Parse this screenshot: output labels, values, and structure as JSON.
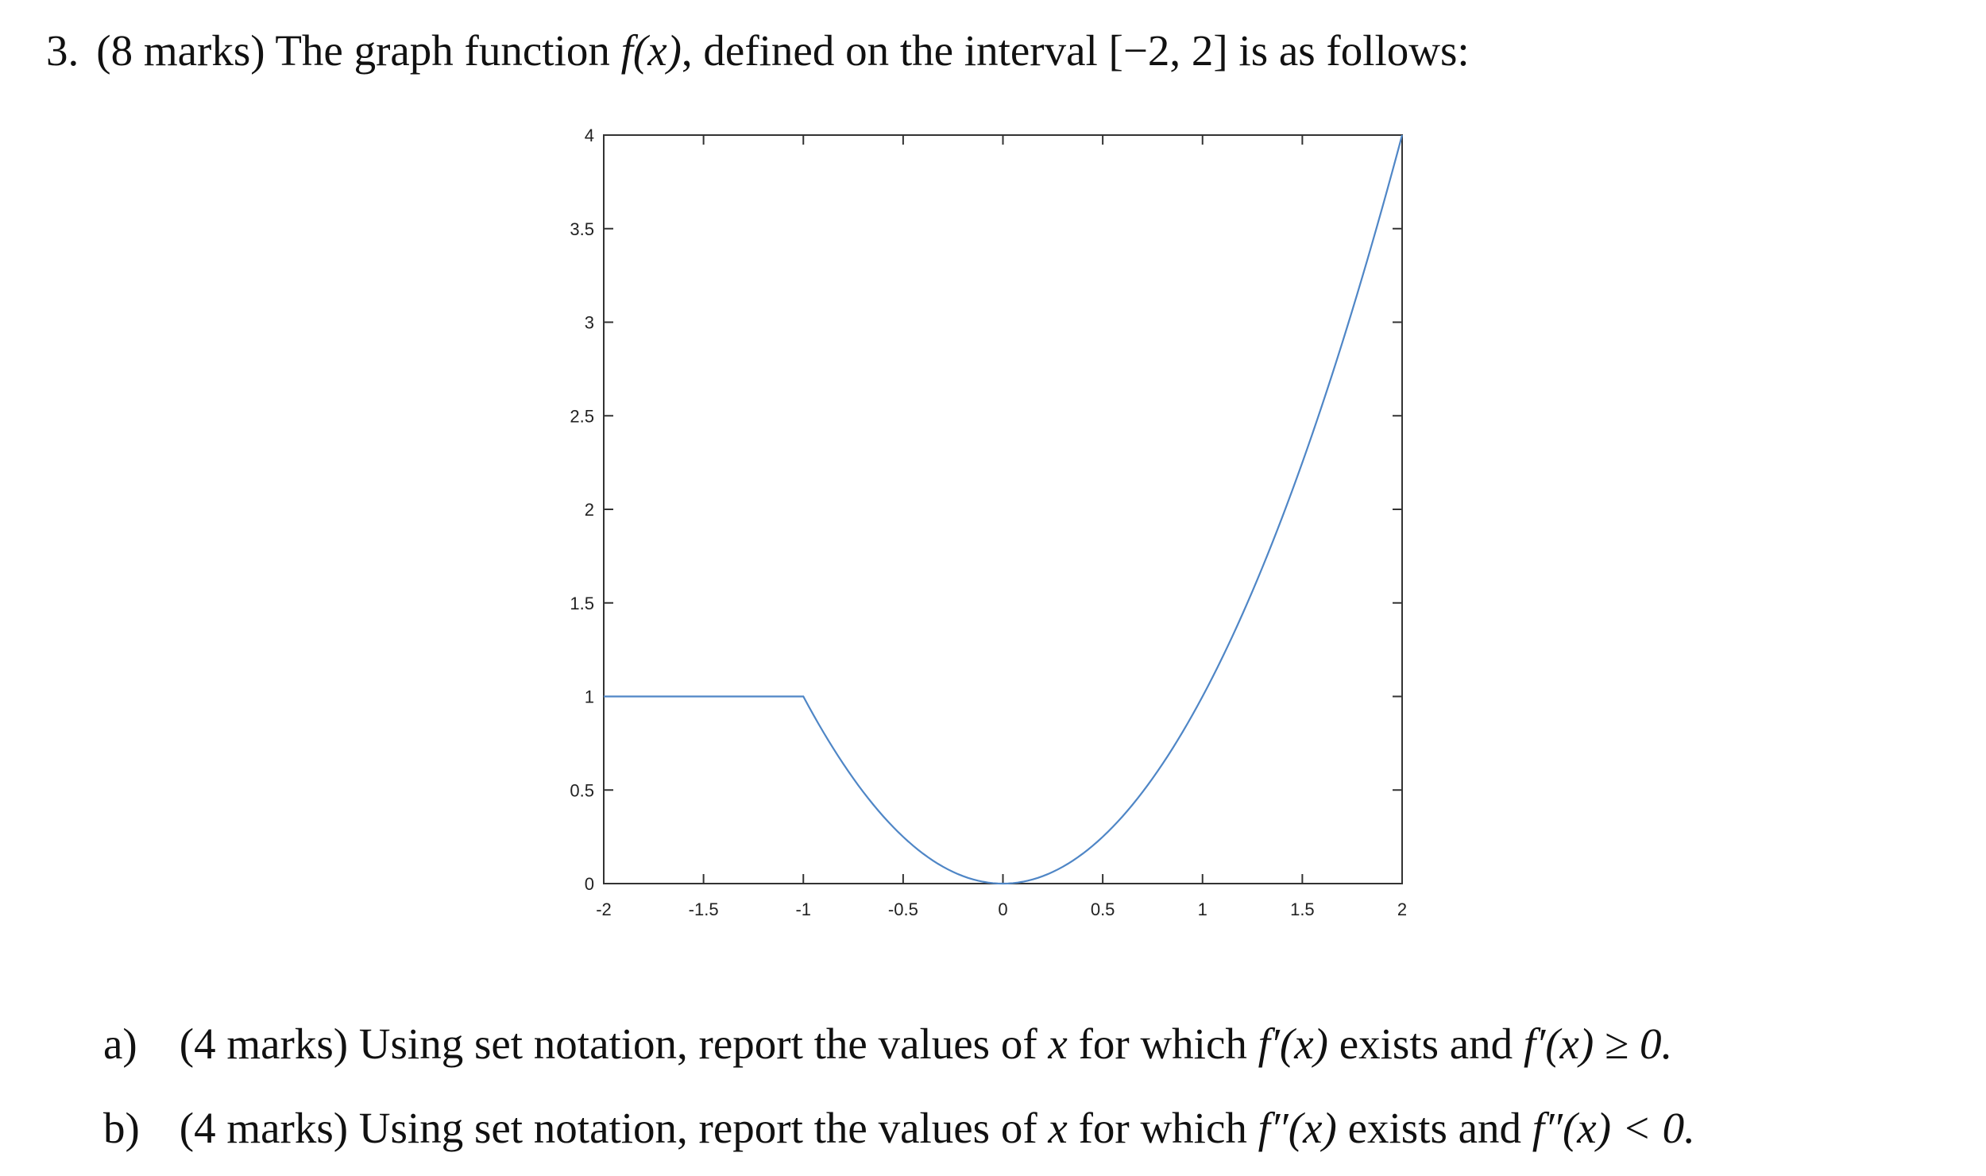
{
  "question": {
    "number": "3.",
    "marks": "(8 marks)",
    "text_before": "The graph function",
    "fx": "f(x)",
    "text_mid": ", defined on the interval",
    "interval": "[−2, 2]",
    "text_after": "is as follows:"
  },
  "chart_data": {
    "type": "line",
    "title": "",
    "xlabel": "",
    "ylabel": "",
    "xlim": [
      -2,
      2
    ],
    "ylim": [
      0,
      4
    ],
    "x_ticks": [
      "-2",
      "-1.5",
      "-1",
      "-0.5",
      "0",
      "0.5",
      "1",
      "1.5",
      "2"
    ],
    "y_ticks": [
      "0",
      "0.5",
      "1",
      "1.5",
      "2",
      "2.5",
      "3",
      "3.5",
      "4"
    ],
    "grid": false,
    "line_color": "#4f86c6",
    "series": [
      {
        "values": [
          {
            "x": -2,
            "y": 1
          },
          {
            "x": -1.5,
            "y": 1
          },
          {
            "x": -1,
            "y": 1
          },
          {
            "x": -0.75,
            "y": 0.5625
          },
          {
            "x": -0.5,
            "y": 0.25
          },
          {
            "x": -0.25,
            "y": 0.0625
          },
          {
            "x": 0,
            "y": 0
          },
          {
            "x": 0.25,
            "y": 0.0625
          },
          {
            "x": 0.5,
            "y": 0.25
          },
          {
            "x": 0.75,
            "y": 0.5625
          },
          {
            "x": 1,
            "y": 1
          },
          {
            "x": 1.25,
            "y": 1.5625
          },
          {
            "x": 1.5,
            "y": 2.25
          },
          {
            "x": 1.75,
            "y": 3.0625
          },
          {
            "x": 2,
            "y": 4
          }
        ]
      }
    ]
  },
  "parts": [
    {
      "label": "a)",
      "marks": "(4 marks)",
      "text": "Using set notation, report the values of",
      "var": "x",
      "text2": "for which",
      "cond1": "f′(x)",
      "text3": "exists and",
      "cond2": "f′(x) ≥ 0."
    },
    {
      "label": "b)",
      "marks": "(4 marks)",
      "text": "Using set notation, report the values of",
      "var": "x",
      "text2": "for which",
      "cond1": "f″(x)",
      "text3": "exists and",
      "cond2": "f″(x) < 0."
    }
  ]
}
